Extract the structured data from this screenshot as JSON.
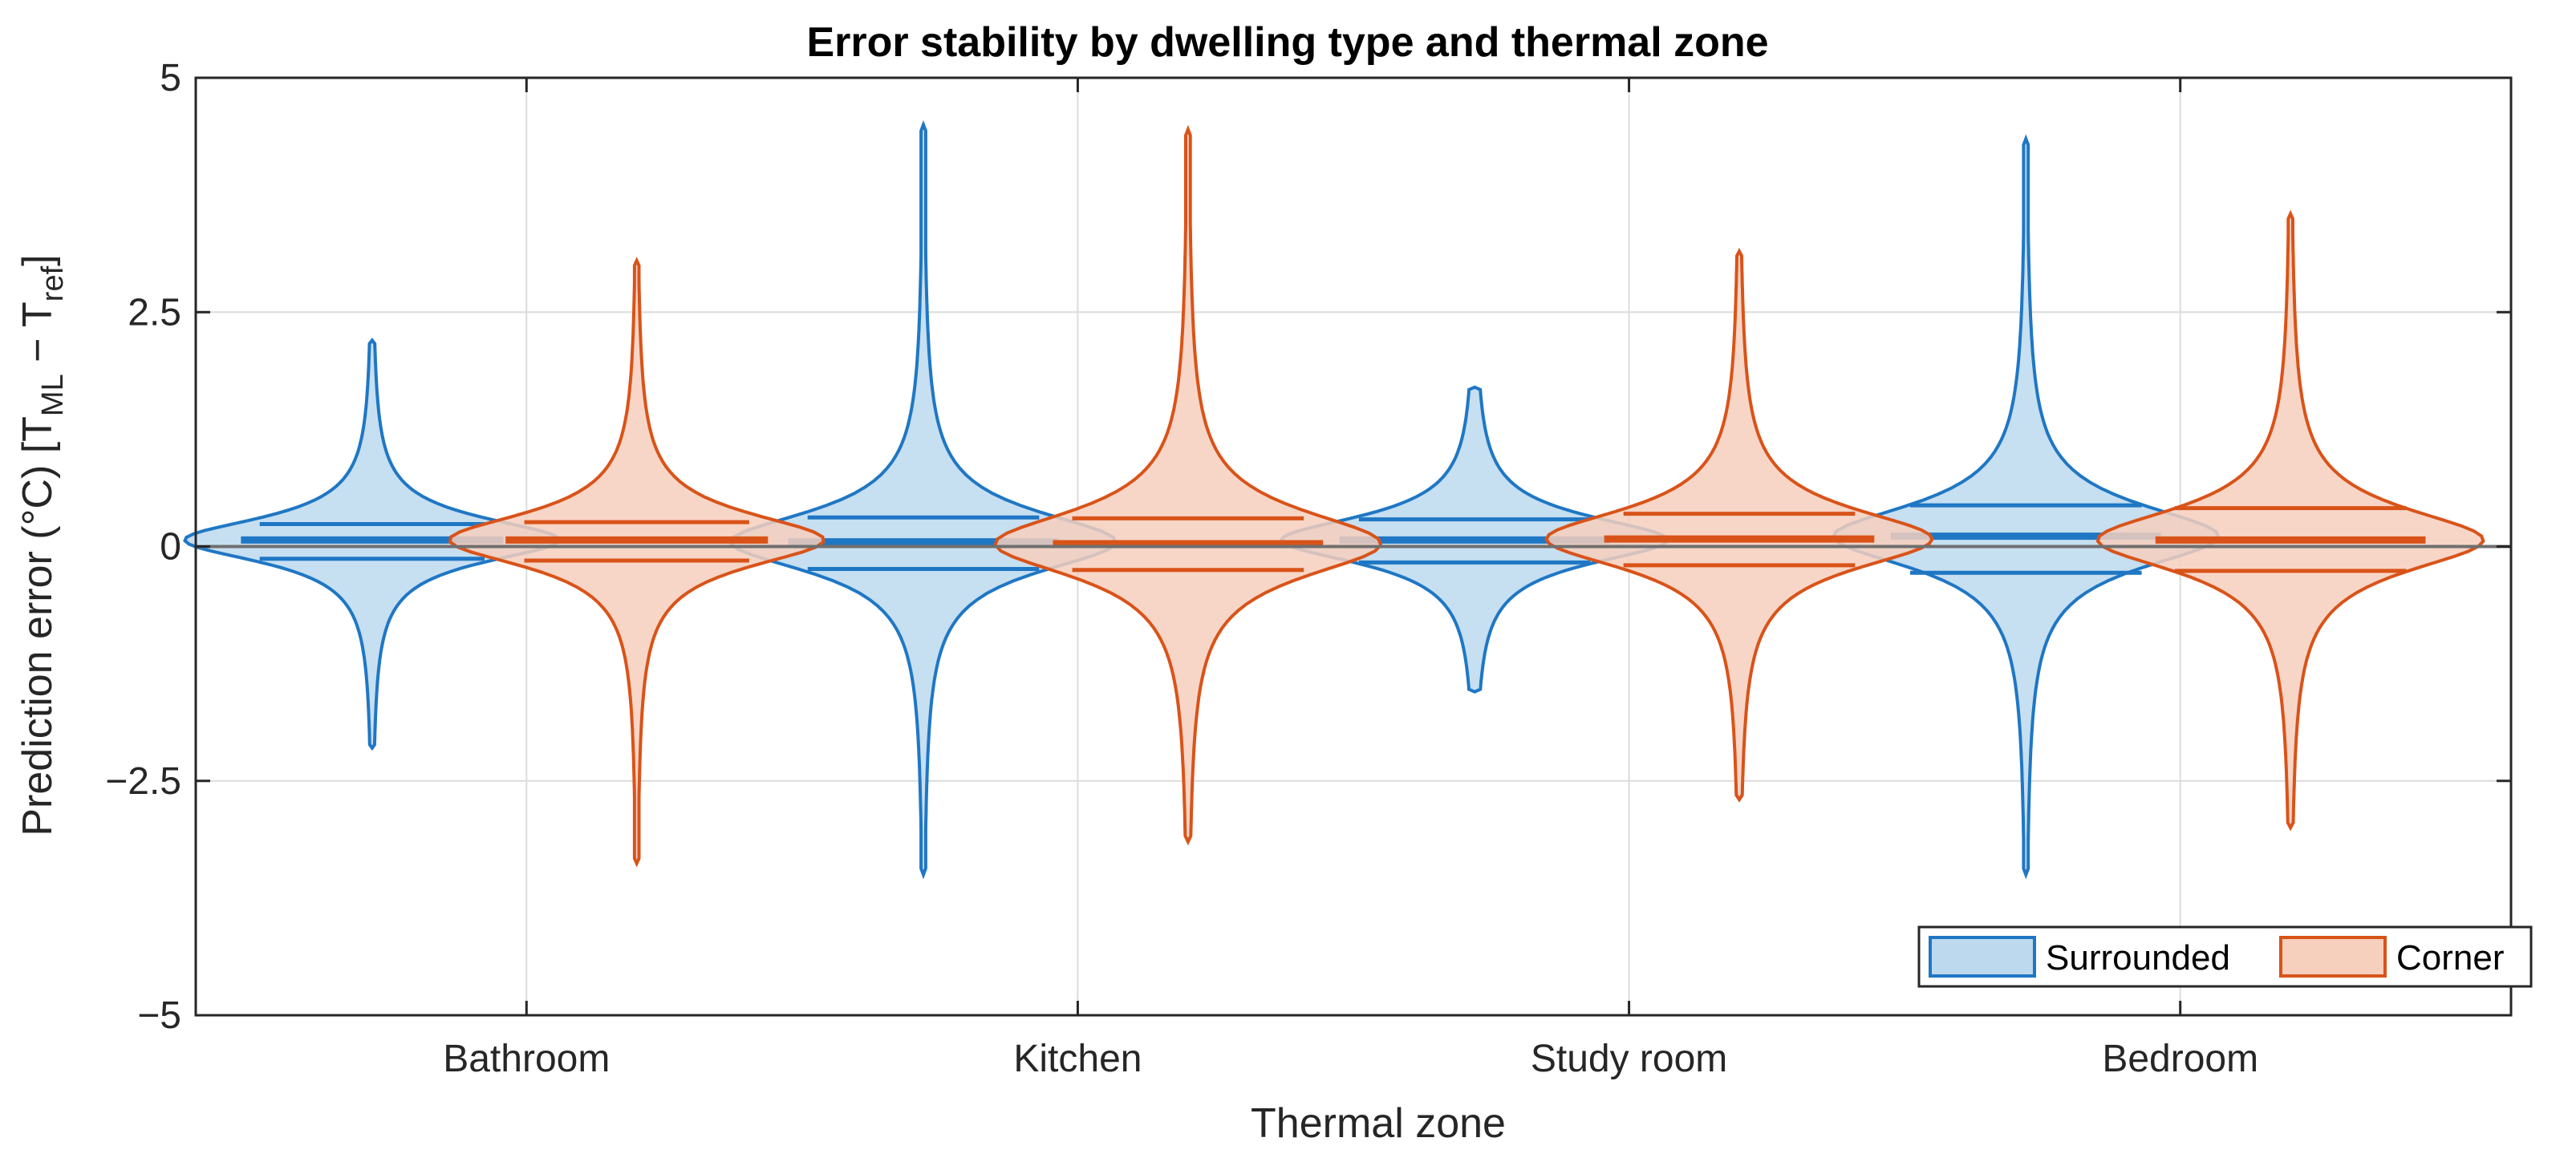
{
  "chart_data": {
    "type": "violin",
    "title": "Error stability by dwelling type and thermal zone",
    "xlabel": "Thermal zone",
    "ylabel": {
      "prefix": "Prediction error (°C)  [T",
      "sub1": "ML",
      "middle": " − T",
      "sub2": "ref",
      "suffix": "]"
    },
    "categories": [
      "Bathroom",
      "Kitchen",
      "Study room",
      "Bedroom"
    ],
    "ylim": [
      -5,
      5
    ],
    "yticks": [
      5,
      2.5,
      0,
      -2.5,
      -5
    ],
    "ytick_labels": [
      "5",
      "2.5",
      "0",
      "−2.5",
      "−5"
    ],
    "grid": true,
    "legend_position": "bottom-right",
    "series": [
      {
        "name": "Surrounded",
        "color": "#1f77c4",
        "fill": "#bcd9ee",
        "violins": [
          {
            "category": "Bathroom",
            "min": -2.15,
            "max": 2.2,
            "q1": -0.13,
            "median": 0.07,
            "q3": 0.24,
            "width": 0.34,
            "bandwidth": 0.28
          },
          {
            "category": "Kitchen",
            "min": -3.5,
            "max": 4.5,
            "q1": -0.24,
            "median": 0.05,
            "q3": 0.31,
            "width": 0.35,
            "bandwidth": 0.38
          },
          {
            "category": "Study room",
            "min": -1.55,
            "max": 1.7,
            "q1": -0.17,
            "median": 0.07,
            "q3": 0.29,
            "width": 0.35,
            "bandwidth": 0.3
          },
          {
            "category": "Bedroom",
            "min": -3.5,
            "max": 4.35,
            "q1": -0.28,
            "median": 0.11,
            "q3": 0.44,
            "width": 0.35,
            "bandwidth": 0.4
          }
        ]
      },
      {
        "name": "Corner",
        "color": "#d95319",
        "fill": "#f6cfbd",
        "violins": [
          {
            "category": "Bathroom",
            "min": -3.38,
            "max": 3.05,
            "q1": -0.15,
            "median": 0.07,
            "q3": 0.26,
            "width": 0.34,
            "bandwidth": 0.34
          },
          {
            "category": "Kitchen",
            "min": -3.15,
            "max": 4.45,
            "q1": -0.25,
            "median": 0.03,
            "q3": 0.3,
            "width": 0.35,
            "bandwidth": 0.42
          },
          {
            "category": "Study room",
            "min": -2.7,
            "max": 3.15,
            "q1": -0.2,
            "median": 0.08,
            "q3": 0.35,
            "width": 0.35,
            "bandwidth": 0.38
          },
          {
            "category": "Bedroom",
            "min": -3.0,
            "max": 3.55,
            "q1": -0.26,
            "median": 0.07,
            "q3": 0.41,
            "width": 0.35,
            "bandwidth": 0.4
          }
        ]
      }
    ]
  }
}
